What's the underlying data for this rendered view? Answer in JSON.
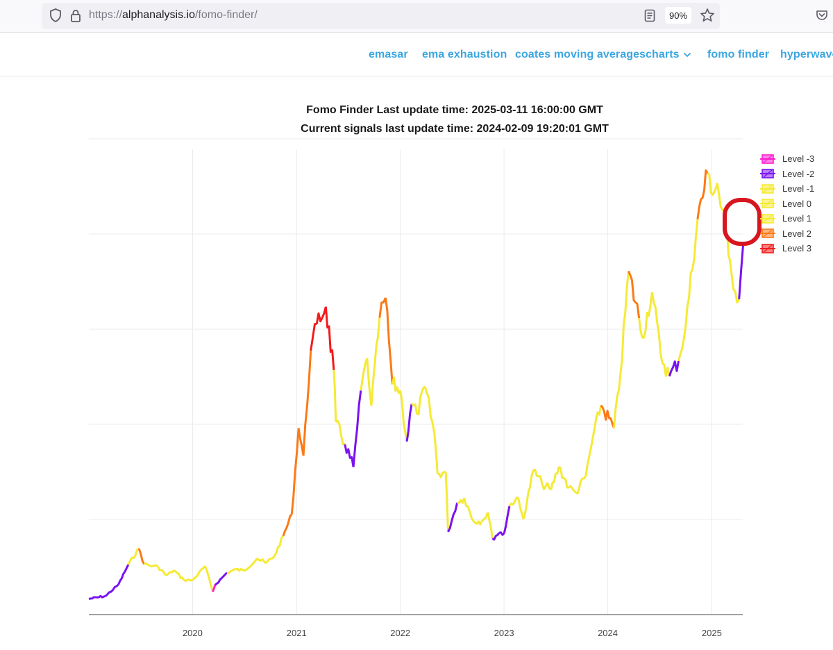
{
  "browser": {
    "url_scheme": "https://",
    "url_host": "alphanalysis.io",
    "url_path": "/fomo-finder/",
    "zoom": "90%"
  },
  "nav": {
    "items": [
      {
        "label": "emasar"
      },
      {
        "label": "ema exhaustion"
      },
      {
        "label": "coates moving averages"
      },
      {
        "label": "charts",
        "has_dropdown": true
      },
      {
        "label": "fomo finder"
      },
      {
        "label": "hyperwave"
      }
    ]
  },
  "chart_data": {
    "type": "line",
    "title": "Fomo Finder Last update time: 2025-03-11 16:00:00 GMT",
    "subtitle": "Current signals last update time: 2024-02-09 19:20:01 GMT",
    "x_tick_labels": [
      "2020",
      "2021",
      "2022",
      "2023",
      "2024",
      "2025"
    ],
    "xlim": [
      "2019-01-01",
      "2025-04-20"
    ],
    "ylim": [
      0,
      100
    ],
    "y_tick_labels_shown": false,
    "grid": true,
    "legend_position": "top-right",
    "legend": [
      {
        "name": "Level -3",
        "color": "#ff1fd1"
      },
      {
        "name": "Level -2",
        "color": "#7a12f0"
      },
      {
        "name": "Level -1",
        "color": "#f5ea35"
      },
      {
        "name": "Level 0",
        "color": "#f5ea35"
      },
      {
        "name": "Level 1",
        "color": "#f5ea35"
      },
      {
        "name": "Level 2",
        "color": "#fb7a16"
      },
      {
        "name": "Level 3",
        "color": "#f21b1b"
      }
    ],
    "series_points": [
      {
        "x": "2019-01-01",
        "y": 3.3,
        "level": -2
      },
      {
        "x": "2019-03-01",
        "y": 3.9,
        "level": -2
      },
      {
        "x": "2019-04-15",
        "y": 6.3,
        "level": -2
      },
      {
        "x": "2019-05-20",
        "y": 10.5,
        "level": 1
      },
      {
        "x": "2019-06-26",
        "y": 13.9,
        "level": 2
      },
      {
        "x": "2019-07-15",
        "y": 10.6,
        "level": 1
      },
      {
        "x": "2019-08-15",
        "y": 10.2,
        "level": 1
      },
      {
        "x": "2019-09-01",
        "y": 10.1,
        "level": 1
      },
      {
        "x": "2019-10-01",
        "y": 8.2,
        "level": 0
      },
      {
        "x": "2019-10-27",
        "y": 9.3,
        "level": 1
      },
      {
        "x": "2019-12-01",
        "y": 7.3,
        "level": 0
      },
      {
        "x": "2020-01-01",
        "y": 7.2,
        "level": 0
      },
      {
        "x": "2020-02-14",
        "y": 10.2,
        "level": 1
      },
      {
        "x": "2020-03-12",
        "y": 4.8,
        "level": -3
      },
      {
        "x": "2020-03-20",
        "y": 6.2,
        "level": -2
      },
      {
        "x": "2020-05-01",
        "y": 8.8,
        "level": 0
      },
      {
        "x": "2020-06-01",
        "y": 9.5,
        "level": 0
      },
      {
        "x": "2020-07-01",
        "y": 9.2,
        "level": 1
      },
      {
        "x": "2020-08-15",
        "y": 11.8,
        "level": 1
      },
      {
        "x": "2020-09-15",
        "y": 10.8,
        "level": 0
      },
      {
        "x": "2020-10-15",
        "y": 12.3,
        "level": 1
      },
      {
        "x": "2020-11-15",
        "y": 16.5,
        "level": 2
      },
      {
        "x": "2020-12-15",
        "y": 21.1,
        "level": 2
      },
      {
        "x": "2021-01-08",
        "y": 39.2,
        "level": 2
      },
      {
        "x": "2021-01-25",
        "y": 33.4,
        "level": 2
      },
      {
        "x": "2021-02-20",
        "y": 55.5,
        "level": 3
      },
      {
        "x": "2021-03-13",
        "y": 61.1,
        "level": 3
      },
      {
        "x": "2021-04-14",
        "y": 64.7,
        "level": 3
      },
      {
        "x": "2021-05-12",
        "y": 51.4,
        "level": 1
      },
      {
        "x": "2021-05-19",
        "y": 40.5,
        "level": 0
      },
      {
        "x": "2021-06-20",
        "y": 35.8,
        "level": -2
      },
      {
        "x": "2021-07-20",
        "y": 31.0,
        "level": -2
      },
      {
        "x": "2021-08-15",
        "y": 47.1,
        "level": 1
      },
      {
        "x": "2021-09-06",
        "y": 53.9,
        "level": 1
      },
      {
        "x": "2021-09-21",
        "y": 43.9,
        "level": 0
      },
      {
        "x": "2021-10-20",
        "y": 62.4,
        "level": 2
      },
      {
        "x": "2021-11-10",
        "y": 66.6,
        "level": 2
      },
      {
        "x": "2021-12-04",
        "y": 48.4,
        "level": 0
      },
      {
        "x": "2022-01-01",
        "y": 47.1,
        "level": 0
      },
      {
        "x": "2022-01-24",
        "y": 36.4,
        "level": -2
      },
      {
        "x": "2022-02-10",
        "y": 44.3,
        "level": 0
      },
      {
        "x": "2022-03-01",
        "y": 42.1,
        "level": 0
      },
      {
        "x": "2022-03-29",
        "y": 47.9,
        "level": 1
      },
      {
        "x": "2022-05-01",
        "y": 38.1,
        "level": 0
      },
      {
        "x": "2022-05-12",
        "y": 29.6,
        "level": -1
      },
      {
        "x": "2022-06-10",
        "y": 29.9,
        "level": 0
      },
      {
        "x": "2022-06-18",
        "y": 17.4,
        "level": -2
      },
      {
        "x": "2022-07-20",
        "y": 23.5,
        "level": 0
      },
      {
        "x": "2022-08-14",
        "y": 24.5,
        "level": 1
      },
      {
        "x": "2022-09-15",
        "y": 19.7,
        "level": 0
      },
      {
        "x": "2022-10-15",
        "y": 19.6,
        "level": 0
      },
      {
        "x": "2022-11-05",
        "y": 21.5,
        "level": 0
      },
      {
        "x": "2022-11-21",
        "y": 16.0,
        "level": -2
      },
      {
        "x": "2022-12-15",
        "y": 17.2,
        "level": -2
      },
      {
        "x": "2023-01-01",
        "y": 17.0,
        "level": -2
      },
      {
        "x": "2023-01-20",
        "y": 22.8,
        "level": 1
      },
      {
        "x": "2023-02-15",
        "y": 24.7,
        "level": 0
      },
      {
        "x": "2023-03-10",
        "y": 20.1,
        "level": -1
      },
      {
        "x": "2023-04-14",
        "y": 30.4,
        "level": 1
      },
      {
        "x": "2023-05-15",
        "y": 27.5,
        "level": 0
      },
      {
        "x": "2023-06-15",
        "y": 26.2,
        "level": 0
      },
      {
        "x": "2023-07-13",
        "y": 31.1,
        "level": 1
      },
      {
        "x": "2023-08-17",
        "y": 26.7,
        "level": 0
      },
      {
        "x": "2023-09-11",
        "y": 25.6,
        "level": -1
      },
      {
        "x": "2023-10-16",
        "y": 29.2,
        "level": 0
      },
      {
        "x": "2023-11-10",
        "y": 37.4,
        "level": 1
      },
      {
        "x": "2023-12-08",
        "y": 44.0,
        "level": 2
      },
      {
        "x": "2024-01-23",
        "y": 39.2,
        "level": 0
      },
      {
        "x": "2024-02-15",
        "y": 50.8,
        "level": 1
      },
      {
        "x": "2024-03-14",
        "y": 72.2,
        "level": 2
      },
      {
        "x": "2024-04-20",
        "y": 62.3,
        "level": 1
      },
      {
        "x": "2024-05-01",
        "y": 58.2,
        "level": 0
      },
      {
        "x": "2024-06-05",
        "y": 67.8,
        "level": 1
      },
      {
        "x": "2024-07-05",
        "y": 54.7,
        "level": -1
      },
      {
        "x": "2024-08-05",
        "y": 50.1,
        "level": -2
      },
      {
        "x": "2024-09-06",
        "y": 53.3,
        "level": 0
      },
      {
        "x": "2024-10-01",
        "y": 60.6,
        "level": 0
      },
      {
        "x": "2024-11-12",
        "y": 83.1,
        "level": 2
      },
      {
        "x": "2024-12-17",
        "y": 92.8,
        "level": 1
      },
      {
        "x": "2025-01-10",
        "y": 88.8,
        "level": 0
      },
      {
        "x": "2025-01-20",
        "y": 90.7,
        "level": 1
      },
      {
        "x": "2025-02-20",
        "y": 80.1,
        "level": 0
      },
      {
        "x": "2025-03-01",
        "y": 75.5,
        "level": 0
      },
      {
        "x": "2025-03-11",
        "y": 72.0,
        "level": -1
      },
      {
        "x": "2025-04-07",
        "y": 66.3,
        "level": -2
      },
      {
        "x": "2025-04-22",
        "y": 78.2,
        "level": 0
      }
    ]
  }
}
